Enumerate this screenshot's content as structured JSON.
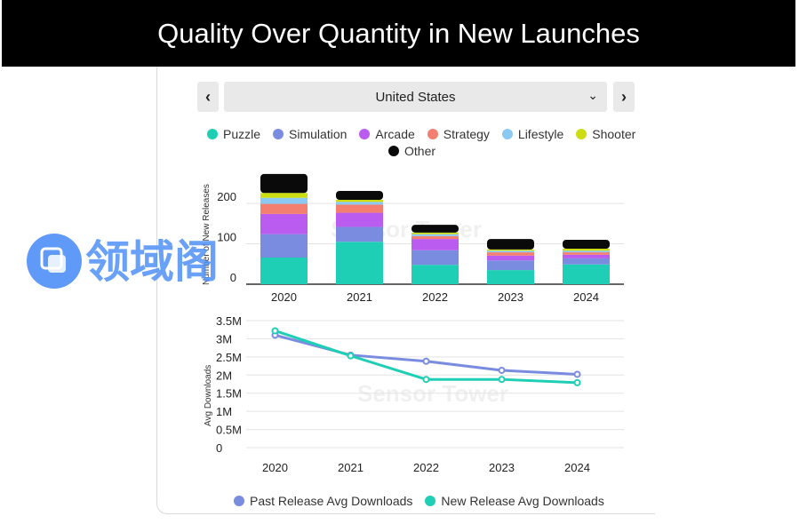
{
  "title": "Quality Over Quantity in New Launches",
  "selector": {
    "value": "United States",
    "prev_icon": "chevron-left-icon",
    "next_icon": "chevron-right-icon",
    "dropdown_icon": "chevron-down-icon"
  },
  "watermark": {
    "text": "Sensor Tower"
  },
  "brand": {
    "text": "领域阁"
  },
  "colors": {
    "Puzzle": "#1fcfb5",
    "Simulation": "#7a8ce0",
    "Arcade": "#bb5cf0",
    "Strategy": "#f27f6f",
    "Lifestyle": "#8cc9f2",
    "Shooter": "#ccdd11",
    "Other": "#0a0a0a"
  },
  "chart_data": [
    {
      "type": "bar",
      "stacked": true,
      "categories": [
        "2020",
        "2021",
        "2022",
        "2023",
        "2024"
      ],
      "ylabel": "Number of New Releases",
      "ylim": [
        0,
        275
      ],
      "yticks": [
        0,
        100,
        200
      ],
      "grid": true,
      "legend_position": "top",
      "series": [
        {
          "name": "Puzzle",
          "values": [
            66,
            105,
            48,
            35,
            49
          ]
        },
        {
          "name": "Simulation",
          "values": [
            58,
            37,
            36,
            24,
            15
          ]
        },
        {
          "name": "Arcade",
          "values": [
            50,
            35,
            28,
            12,
            9
          ]
        },
        {
          "name": "Strategy",
          "values": [
            25,
            20,
            7,
            8,
            6
          ]
        },
        {
          "name": "Lifestyle",
          "values": [
            15,
            7,
            5,
            4,
            4
          ]
        },
        {
          "name": "Shooter",
          "values": [
            12,
            5,
            4,
            3,
            5
          ]
        },
        {
          "name": "Other",
          "values": [
            47,
            22,
            19,
            26,
            22
          ]
        }
      ]
    },
    {
      "type": "line",
      "x": [
        "2020",
        "2021",
        "2022",
        "2023",
        "2024"
      ],
      "ylabel": "Avg Downloads",
      "ylim": [
        0,
        3500000
      ],
      "yticks": [
        0,
        500000,
        1000000,
        1500000,
        2000000,
        2500000,
        3000000,
        3500000
      ],
      "ytick_labels": [
        "0",
        "0.5M",
        "1M",
        "1.5M",
        "2M",
        "2.5M",
        "3M",
        "3.5M"
      ],
      "grid": true,
      "legend_position": "bottom",
      "series": [
        {
          "name": "Past Release Avg Downloads",
          "color": "#7a8ce0",
          "values": [
            3100000,
            2550000,
            2380000,
            2130000,
            2020000
          ]
        },
        {
          "name": "New Release Avg Downloads",
          "color": "#1fcfb5",
          "values": [
            3220000,
            2530000,
            1880000,
            1880000,
            1790000
          ]
        }
      ]
    }
  ]
}
